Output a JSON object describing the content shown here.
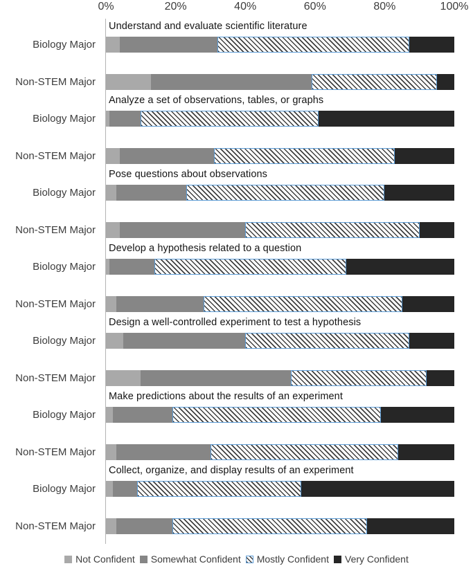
{
  "chart_data": {
    "type": "bar",
    "orientation": "horizontal",
    "stacked": true,
    "unit": "percent",
    "title": "",
    "x_axis": {
      "ticks": [
        "0%",
        "20%",
        "40%",
        "60%",
        "80%",
        "100%"
      ],
      "range": [
        0,
        100
      ],
      "grid": false
    },
    "legend_position": "bottom",
    "legend": [
      {
        "label": "Not Confident",
        "style": "solid",
        "color": "#a9a9a9"
      },
      {
        "label": "Somewhat Confident",
        "style": "solid",
        "color": "#868686"
      },
      {
        "label": "Mostly Confident",
        "style": "diagonal-hatch",
        "color": "#ffffff",
        "stripe_color": "#3f3f3f",
        "border_color": "#5b9bd5"
      },
      {
        "label": "Very Confident",
        "style": "solid",
        "color": "#262626"
      }
    ],
    "row_labels": [
      "Biology Major",
      "Non-STEM Major"
    ],
    "groups": [
      {
        "title": "Understand and evaluate scientific literature",
        "series": [
          {
            "name": "Biology Major",
            "values": [
              4,
              28,
              55,
              13
            ]
          },
          {
            "name": "Non-STEM Major",
            "values": [
              13,
              46,
              36,
              5
            ]
          }
        ]
      },
      {
        "title": "Analyze a set of observations, tables, or graphs",
        "series": [
          {
            "name": "Biology Major",
            "values": [
              1,
              9,
              51,
              39
            ]
          },
          {
            "name": "Non-STEM Major",
            "values": [
              4,
              27,
              52,
              17
            ]
          }
        ]
      },
      {
        "title": "Pose questions about observations",
        "series": [
          {
            "name": "Biology Major",
            "values": [
              3,
              20,
              57,
              20
            ]
          },
          {
            "name": "Non-STEM Major",
            "values": [
              4,
              36,
              50,
              10
            ]
          }
        ]
      },
      {
        "title": "Develop a hypothesis related to a question",
        "series": [
          {
            "name": "Biology Major",
            "values": [
              1,
              13,
              55,
              31
            ]
          },
          {
            "name": "Non-STEM Major",
            "values": [
              3,
              25,
              57,
              15
            ]
          }
        ]
      },
      {
        "title": "Design a well-controlled experiment to test a hypothesis",
        "series": [
          {
            "name": "Biology Major",
            "values": [
              5,
              35,
              47,
              13
            ]
          },
          {
            "name": "Non-STEM Major",
            "values": [
              10,
              43,
              39,
              8
            ]
          }
        ]
      },
      {
        "title": "Make predictions about the results of an experiment",
        "series": [
          {
            "name": "Biology Major",
            "values": [
              2,
              17,
              60,
              21
            ]
          },
          {
            "name": "Non-STEM Major",
            "values": [
              3,
              27,
              54,
              16
            ]
          }
        ]
      },
      {
        "title": "Collect, organize, and display results of an experiment",
        "series": [
          {
            "name": "Biology Major",
            "values": [
              2,
              7,
              47,
              44
            ]
          },
          {
            "name": "Non-STEM Major",
            "values": [
              3,
              16,
              56,
              25
            ]
          }
        ]
      }
    ]
  },
  "layout_meta": {
    "segment_names": [
      "not-confident",
      "somewhat-confident",
      "mostly-confident",
      "very-confident"
    ]
  }
}
